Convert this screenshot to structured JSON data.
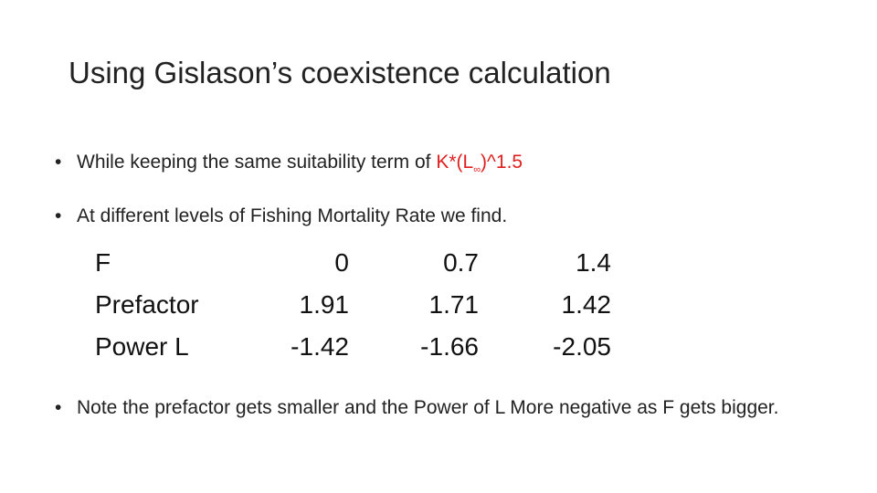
{
  "slide": {
    "title": "Using Gislason’s coexistence calculation",
    "bullets": [
      {
        "marker": "•",
        "text_before": "While keeping the same suitability term of ",
        "highlight": "K*(L",
        "highlight_sub": "∞",
        "highlight_after": ")^1.5",
        "highlight_color": "#e02020"
      },
      {
        "marker": "•",
        "text": "At different levels of Fishing Mortality Rate we find."
      },
      {
        "marker": "•",
        "text": "Note the prefactor gets smaller and the Power of L More negative as F gets bigger."
      }
    ],
    "table": {
      "rows": [
        [
          "F",
          "0",
          "0.7",
          "1.4"
        ],
        [
          "Prefactor",
          "1.91",
          "1.71",
          "1.42"
        ],
        [
          "Power L",
          "-1.42",
          "-1.66",
          "-2.05"
        ]
      ]
    }
  }
}
